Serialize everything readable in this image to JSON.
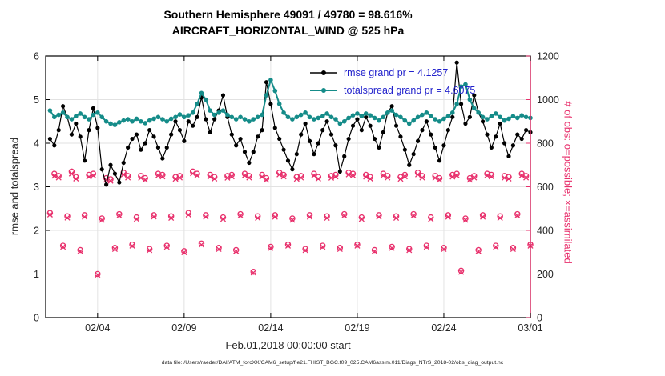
{
  "header": {
    "title_line1": "Southern Hemisphere 49091 / 49780 = 98.616%",
    "title_line2": "AIRCRAFT_HORIZONTAL_WIND @ 525 hPa"
  },
  "left_axis": {
    "label": "rmse and totalspread",
    "ticks": [
      0,
      1,
      2,
      3,
      4,
      5,
      6
    ]
  },
  "right_axis": {
    "label": "# of obs: o=possible; ×=assimilated",
    "ticks": [
      0,
      200,
      400,
      600,
      800,
      1000,
      1200
    ]
  },
  "x_axis": {
    "label": "Feb.01,2018 00:00:00 start",
    "tick_days": [
      3,
      8,
      13,
      18,
      23,
      28
    ],
    "tick_labels": [
      "02/04",
      "02/09",
      "02/14",
      "02/19",
      "02/24",
      "03/01"
    ]
  },
  "legend": [
    {
      "label": "rmse grand pr = 4.1257"
    },
    {
      "label": "totalspread grand pr = 4.6075"
    }
  ],
  "caption": "data file: /Users/raeder/DAI/ATM_forcXX/CAM6_setup/f.e21.FHIST_BGC.f09_025.CAM6assim.011/Diags_NTrS_2018-02/obs_diag_output.nc",
  "colors": {
    "rmse": "#000000",
    "totalspread": "#158c89",
    "obs": "#e8306c",
    "legend_text": "#2222cc",
    "grid": "#e2e2e2",
    "axis": "#000000"
  },
  "chart_data": {
    "type": "line",
    "title": "Southern Hemisphere 49091 / 49780 = 98.616% — AIRCRAFT_HORIZONTAL_WIND @ 525 hPa",
    "x_range_days": [
      0,
      28
    ],
    "left_ylim": [
      0,
      6
    ],
    "right_ylim": [
      0,
      1200
    ],
    "grid": true,
    "legend_position": "top-center-inside",
    "x_days": [
      0.25,
      0.5,
      0.75,
      1,
      1.25,
      1.5,
      1.75,
      2,
      2.25,
      2.5,
      2.75,
      3,
      3.25,
      3.5,
      3.75,
      4,
      4.25,
      4.5,
      4.75,
      5,
      5.25,
      5.5,
      5.75,
      6,
      6.25,
      6.5,
      6.75,
      7,
      7.25,
      7.5,
      7.75,
      8,
      8.25,
      8.5,
      8.75,
      9,
      9.25,
      9.5,
      9.75,
      10,
      10.25,
      10.5,
      10.75,
      11,
      11.25,
      11.5,
      11.75,
      12,
      12.25,
      12.5,
      12.75,
      13,
      13.25,
      13.5,
      13.75,
      14,
      14.25,
      14.5,
      14.75,
      15,
      15.25,
      15.5,
      15.75,
      16,
      16.25,
      16.5,
      16.75,
      17,
      17.25,
      17.5,
      17.75,
      18,
      18.25,
      18.5,
      18.75,
      19,
      19.25,
      19.5,
      19.75,
      20,
      20.25,
      20.5,
      20.75,
      21,
      21.25,
      21.5,
      21.75,
      22,
      22.25,
      22.5,
      22.75,
      23,
      23.25,
      23.5,
      23.75,
      24,
      24.25,
      24.5,
      24.75,
      25,
      25.25,
      25.5,
      25.75,
      26,
      26.25,
      26.5,
      26.75,
      27,
      27.25,
      27.5,
      27.75,
      28
    ],
    "series_left": [
      {
        "name": "rmse",
        "color": "#000000",
        "marker": "dot",
        "grand_mean": 4.1257,
        "values": [
          4.1,
          3.95,
          4.3,
          4.85,
          4.6,
          4.2,
          4.45,
          4.15,
          3.6,
          4.3,
          4.8,
          4.35,
          3.4,
          3.05,
          3.5,
          3.3,
          3.1,
          3.55,
          3.9,
          4.1,
          4.2,
          3.85,
          4.0,
          4.3,
          4.15,
          3.9,
          3.65,
          3.9,
          4.2,
          4.5,
          4.3,
          4.05,
          4.5,
          4.4,
          4.6,
          5.05,
          4.55,
          4.25,
          4.55,
          4.75,
          5.1,
          4.6,
          4.2,
          3.95,
          4.1,
          3.8,
          3.55,
          3.8,
          4.15,
          4.3,
          5.4,
          4.9,
          4.35,
          4.1,
          3.85,
          3.6,
          3.4,
          3.75,
          4.2,
          4.45,
          4.05,
          3.75,
          4.0,
          4.3,
          4.5,
          4.2,
          3.95,
          3.35,
          3.7,
          4.1,
          4.4,
          4.55,
          4.3,
          4.6,
          4.4,
          4.1,
          3.9,
          4.25,
          4.7,
          4.85,
          4.4,
          4.15,
          3.85,
          3.5,
          3.75,
          4.05,
          4.3,
          4.5,
          4.2,
          3.9,
          3.6,
          3.95,
          4.3,
          4.6,
          5.85,
          4.9,
          4.45,
          4.6,
          5.1,
          4.7,
          4.5,
          4.2,
          3.9,
          4.15,
          4.45,
          4.0,
          3.7,
          3.95,
          4.2,
          4.1,
          4.3,
          4.25
        ]
      },
      {
        "name": "totalspread",
        "color": "#158c89",
        "marker": "dot",
        "grand_mean": 4.6075,
        "values": [
          4.75,
          4.6,
          4.65,
          4.7,
          4.6,
          4.55,
          4.62,
          4.68,
          4.6,
          4.55,
          4.65,
          4.7,
          4.6,
          4.5,
          4.45,
          4.42,
          4.48,
          4.52,
          4.55,
          4.5,
          4.56,
          4.5,
          4.46,
          4.52,
          4.56,
          4.6,
          4.55,
          4.5,
          4.56,
          4.6,
          4.66,
          4.6,
          4.64,
          4.7,
          4.9,
          5.15,
          5.0,
          4.75,
          4.65,
          4.7,
          4.75,
          4.65,
          4.6,
          4.55,
          4.6,
          4.55,
          4.5,
          4.55,
          4.6,
          4.65,
          5.1,
          5.45,
          5.2,
          4.9,
          4.7,
          4.6,
          4.55,
          4.6,
          4.65,
          4.7,
          4.6,
          4.55,
          4.58,
          4.62,
          4.68,
          4.6,
          4.55,
          4.45,
          4.5,
          4.58,
          4.64,
          4.68,
          4.62,
          4.68,
          4.64,
          4.58,
          4.52,
          4.6,
          4.7,
          4.75,
          4.65,
          4.6,
          4.52,
          4.45,
          4.52,
          4.6,
          4.65,
          4.7,
          4.62,
          4.55,
          4.5,
          4.56,
          4.62,
          4.7,
          4.9,
          5.3,
          5.35,
          5.0,
          4.8,
          4.7,
          4.6,
          4.55,
          4.62,
          4.68,
          4.6,
          4.52,
          4.56,
          4.62,
          4.58,
          4.64,
          4.6,
          4.58
        ]
      }
    ],
    "series_right": [
      {
        "name": "possible-obs",
        "color": "#e8306c",
        "marker": "circle",
        "values": [
          480,
          660,
          650,
          330,
          465,
          670,
          645,
          310,
          470,
          655,
          660,
          200,
          455,
          640,
          635,
          320,
          475,
          665,
          650,
          335,
          460,
          650,
          640,
          315,
          470,
          660,
          655,
          330,
          465,
          645,
          650,
          305,
          480,
          670,
          660,
          340,
          470,
          655,
          645,
          320,
          460,
          650,
          655,
          310,
          475,
          660,
          650,
          210,
          465,
          655,
          640,
          325,
          470,
          665,
          655,
          335,
          455,
          645,
          650,
          315,
          470,
          660,
          645,
          330,
          465,
          650,
          655,
          320,
          475,
          665,
          660,
          335,
          460,
          655,
          645,
          310,
          470,
          660,
          650,
          325,
          465,
          645,
          655,
          315,
          475,
          665,
          650,
          330,
          460,
          650,
          640,
          320,
          470,
          655,
          660,
          215,
          455,
          640,
          650,
          310,
          470,
          660,
          655,
          330,
          465,
          650,
          645,
          320,
          475,
          660,
          650,
          335
        ]
      },
      {
        "name": "assimilated-obs",
        "color": "#e8306c",
        "marker": "x",
        "values": [
          472,
          650,
          642,
          324,
          458,
          660,
          637,
          304,
          462,
          646,
          652,
          196,
          448,
          632,
          627,
          314,
          468,
          656,
          642,
          329,
          452,
          641,
          632,
          309,
          463,
          652,
          647,
          324,
          457,
          636,
          642,
          299,
          472,
          661,
          652,
          334,
          462,
          646,
          637,
          314,
          452,
          641,
          647,
          304,
          468,
          652,
          642,
          206,
          457,
          646,
          632,
          319,
          462,
          656,
          647,
          329,
          448,
          636,
          642,
          309,
          462,
          652,
          637,
          324,
          457,
          641,
          647,
          314,
          468,
          656,
          652,
          329,
          452,
          646,
          637,
          304,
          462,
          652,
          642,
          319,
          457,
          636,
          647,
          309,
          468,
          656,
          642,
          324,
          452,
          641,
          632,
          314,
          462,
          646,
          652,
          209,
          448,
          632,
          642,
          304,
          462,
          652,
          647,
          324,
          457,
          641,
          637,
          314,
          468,
          652,
          642,
          329
        ]
      }
    ]
  }
}
